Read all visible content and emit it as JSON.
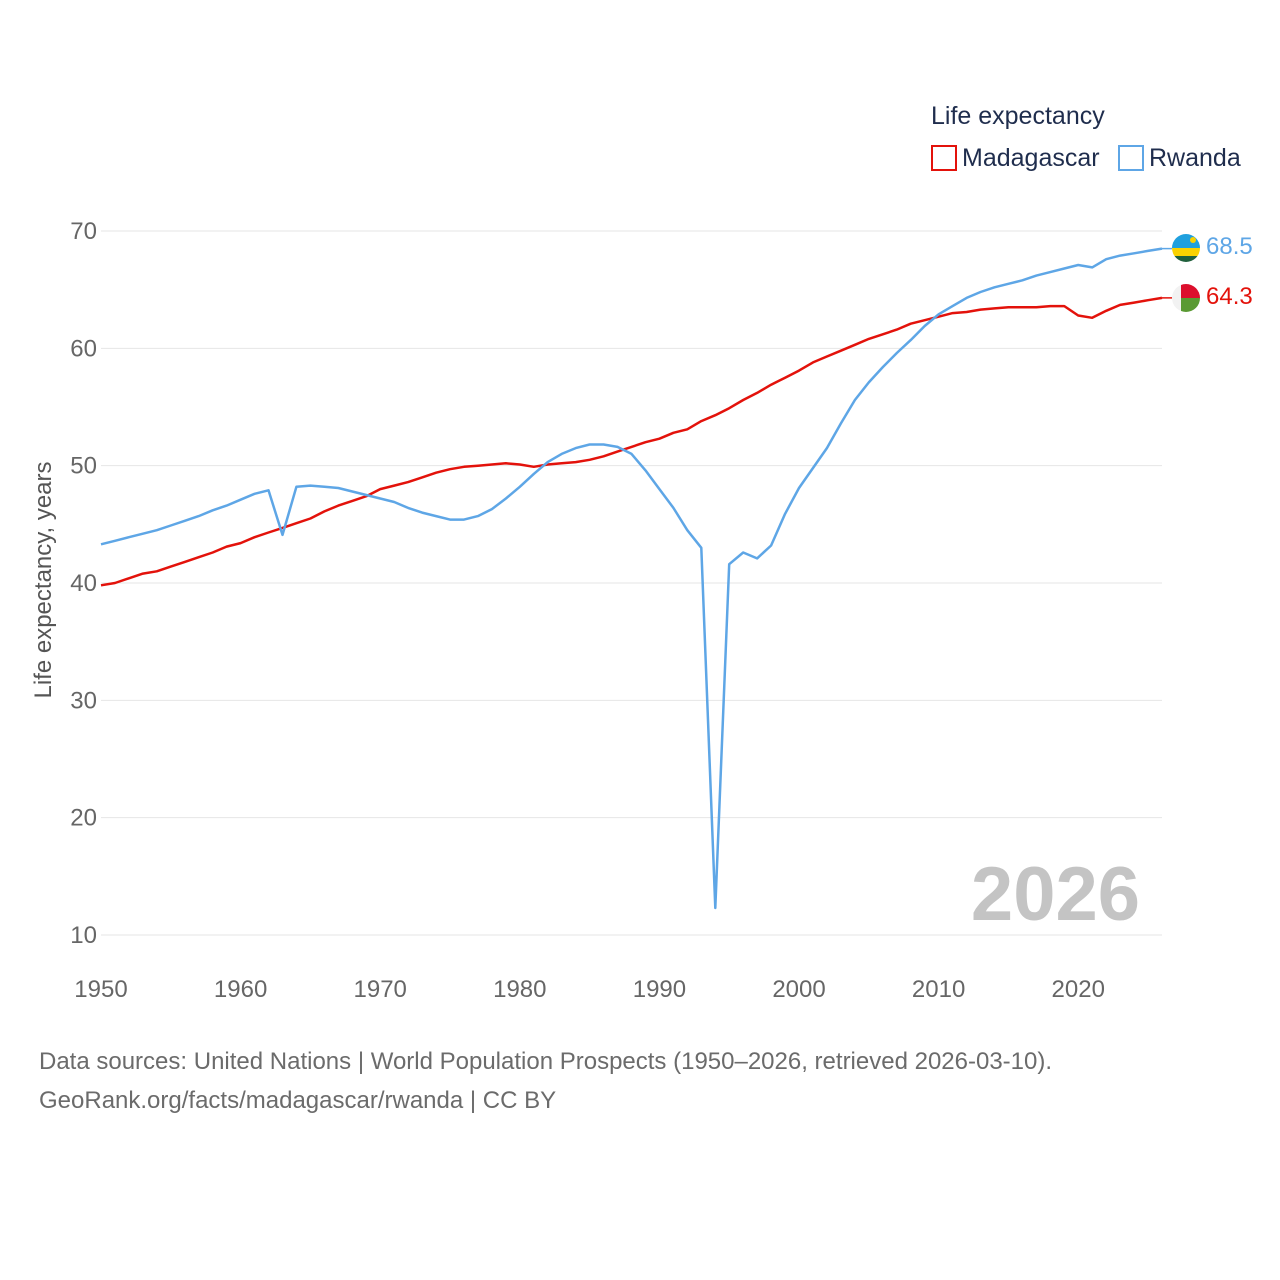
{
  "chart_data": {
    "type": "line",
    "title": "Life expectancy",
    "ylabel": "Life expectancy, years",
    "xlabel": "",
    "xlim": [
      1950,
      2026
    ],
    "ylim": [
      9,
      72
    ],
    "x_ticks": [
      1950,
      1960,
      1970,
      1980,
      1990,
      2000,
      2010,
      2020
    ],
    "y_ticks": [
      10,
      20,
      30,
      40,
      50,
      60,
      70
    ],
    "grid": true,
    "legend_position": "top-right",
    "current_year_label": "2026",
    "series": [
      {
        "name": "Madagascar",
        "color": "#e3120b",
        "end_label": "64.3",
        "flag_icon": "madagascar-flag-icon",
        "x": [
          1950,
          1951,
          1952,
          1953,
          1954,
          1955,
          1956,
          1957,
          1958,
          1959,
          1960,
          1961,
          1962,
          1963,
          1964,
          1965,
          1966,
          1967,
          1968,
          1969,
          1970,
          1971,
          1972,
          1973,
          1974,
          1975,
          1976,
          1977,
          1978,
          1979,
          1980,
          1981,
          1982,
          1983,
          1984,
          1985,
          1986,
          1987,
          1988,
          1989,
          1990,
          1991,
          1992,
          1993,
          1994,
          1995,
          1996,
          1997,
          1998,
          1999,
          2000,
          2001,
          2002,
          2003,
          2004,
          2005,
          2006,
          2007,
          2008,
          2009,
          2010,
          2011,
          2012,
          2013,
          2014,
          2015,
          2016,
          2017,
          2018,
          2019,
          2020,
          2021,
          2022,
          2023,
          2024,
          2025,
          2026
        ],
        "values": [
          39.8,
          40.0,
          40.4,
          40.8,
          41.0,
          41.4,
          41.8,
          42.2,
          42.6,
          43.1,
          43.4,
          43.9,
          44.3,
          44.7,
          45.1,
          45.5,
          46.1,
          46.6,
          47.0,
          47.4,
          48.0,
          48.3,
          48.6,
          49.0,
          49.4,
          49.7,
          49.9,
          50.0,
          50.1,
          50.2,
          50.1,
          49.9,
          50.1,
          50.2,
          50.3,
          50.5,
          50.8,
          51.2,
          51.6,
          52.0,
          52.3,
          52.8,
          53.1,
          53.8,
          54.3,
          54.9,
          55.6,
          56.2,
          56.9,
          57.5,
          58.1,
          58.8,
          59.3,
          59.8,
          60.3,
          60.8,
          61.2,
          61.6,
          62.1,
          62.4,
          62.7,
          63.0,
          63.1,
          63.3,
          63.4,
          63.5,
          63.5,
          63.5,
          63.6,
          63.6,
          62.8,
          62.6,
          63.2,
          63.7,
          63.9,
          64.1,
          64.3
        ]
      },
      {
        "name": "Rwanda",
        "color": "#5ea6e6",
        "end_label": "68.5",
        "flag_icon": "rwanda-flag-icon",
        "x": [
          1950,
          1951,
          1952,
          1953,
          1954,
          1955,
          1956,
          1957,
          1958,
          1959,
          1960,
          1961,
          1962,
          1963,
          1964,
          1965,
          1966,
          1967,
          1968,
          1969,
          1970,
          1971,
          1972,
          1973,
          1974,
          1975,
          1976,
          1977,
          1978,
          1979,
          1980,
          1981,
          1982,
          1983,
          1984,
          1985,
          1986,
          1987,
          1988,
          1989,
          1990,
          1991,
          1992,
          1993,
          1994,
          1995,
          1996,
          1997,
          1998,
          1999,
          2000,
          2001,
          2002,
          2003,
          2004,
          2005,
          2006,
          2007,
          2008,
          2009,
          2010,
          2011,
          2012,
          2013,
          2014,
          2015,
          2016,
          2017,
          2018,
          2019,
          2020,
          2021,
          2022,
          2023,
          2024,
          2025,
          2026
        ],
        "values": [
          43.3,
          43.6,
          43.9,
          44.2,
          44.5,
          44.9,
          45.3,
          45.7,
          46.2,
          46.6,
          47.1,
          47.6,
          47.9,
          44.1,
          48.2,
          48.3,
          48.2,
          48.1,
          47.8,
          47.5,
          47.2,
          46.9,
          46.4,
          46.0,
          45.7,
          45.4,
          45.4,
          45.7,
          46.3,
          47.2,
          48.2,
          49.3,
          50.3,
          51.0,
          51.5,
          51.8,
          51.8,
          51.6,
          51.0,
          49.6,
          48.0,
          46.4,
          44.5,
          43.0,
          12.3,
          41.6,
          42.6,
          42.1,
          43.2,
          45.9,
          48.1,
          49.8,
          51.5,
          53.6,
          55.6,
          57.1,
          58.4,
          59.6,
          60.7,
          61.9,
          62.9,
          63.6,
          64.3,
          64.8,
          65.2,
          65.5,
          65.8,
          66.2,
          66.5,
          66.8,
          67.1,
          66.9,
          67.6,
          67.9,
          68.1,
          68.3,
          68.5
        ]
      }
    ]
  },
  "footer": {
    "source_line": "Data sources: United Nations | World Population Prospects (1950–2026, retrieved 2026-03-10).",
    "attribution_line": "GeoRank.org/facts/madagascar/rwanda | CC BY"
  }
}
